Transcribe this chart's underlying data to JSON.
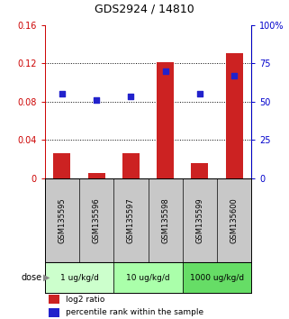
{
  "title": "GDS2924 / 14810",
  "samples": [
    "GSM135595",
    "GSM135596",
    "GSM135597",
    "GSM135598",
    "GSM135599",
    "GSM135600"
  ],
  "log2_ratio": [
    0.026,
    0.005,
    0.026,
    0.121,
    0.016,
    0.13
  ],
  "percentile_rank": [
    55,
    51,
    53,
    70,
    55,
    67
  ],
  "ylim_left": [
    0,
    0.16
  ],
  "ylim_right": [
    0,
    100
  ],
  "yticks_left": [
    0,
    0.04,
    0.08,
    0.12,
    0.16
  ],
  "ytick_labels_left": [
    "0",
    "0.04",
    "0.08",
    "0.12",
    "0.16"
  ],
  "yticks_right": [
    0,
    25,
    50,
    75,
    100
  ],
  "ytick_labels_right": [
    "0",
    "25",
    "50",
    "75",
    "100%"
  ],
  "bar_color": "#cc2222",
  "dot_color": "#2222cc",
  "dose_groups": [
    {
      "label": "1 ug/kg/d",
      "start": 0,
      "end": 1,
      "color": "#ccffcc"
    },
    {
      "label": "10 ug/kg/d",
      "start": 2,
      "end": 3,
      "color": "#aaffaa"
    },
    {
      "label": "1000 ug/kg/d",
      "start": 4,
      "end": 5,
      "color": "#66dd66"
    }
  ],
  "bg_color_plot": "#ffffff",
  "bg_color_label": "#c8c8c8",
  "left_axis_color": "#cc0000",
  "right_axis_color": "#0000cc",
  "legend_log2": "log2 ratio",
  "legend_pct": "percentile rank within the sample",
  "dose_label": "dose"
}
